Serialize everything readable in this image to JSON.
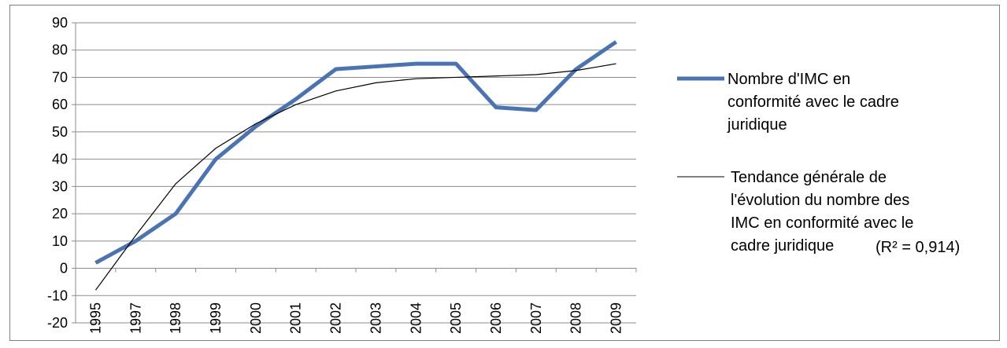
{
  "chart_data": {
    "type": "line",
    "title": "",
    "xlabel": "",
    "ylabel": "",
    "categories": [
      "1995",
      "1997",
      "1998",
      "1999",
      "2000",
      "2001",
      "2002",
      "2003",
      "2004",
      "2005",
      "2006",
      "2007",
      "2008",
      "2009"
    ],
    "ylim": [
      -20,
      90
    ],
    "yticks": [
      -20,
      -10,
      0,
      10,
      20,
      30,
      40,
      50,
      60,
      70,
      80,
      90
    ],
    "grid": true,
    "legend_position": "right",
    "series": [
      {
        "name": "Nombre d'IMC en conformité avec le cadre juridique",
        "color": "#4a73b6",
        "values": [
          2,
          10,
          20,
          40,
          52,
          62,
          73,
          74,
          75,
          75,
          59,
          58,
          73,
          83
        ]
      },
      {
        "name": "Tendance générale de l'évolution du nombre des IMC en conformité avec le cadre juridique",
        "annotation": "(R² = 0,914)",
        "color": "#000000",
        "values": [
          -8,
          12,
          31,
          44,
          53,
          60,
          65,
          68,
          69.5,
          70,
          70.5,
          71,
          72.5,
          75
        ]
      }
    ],
    "legend": {
      "series1_lines": [
        "Nombre d'IMC en",
        "conformité avec le cadre",
        "juridique"
      ],
      "series2_lines": [
        "Tendance générale de",
        "l'évolution du nombre des",
        "IMC en conformité avec le",
        "cadre juridique"
      ],
      "r2": "(R² = 0,914)"
    }
  }
}
